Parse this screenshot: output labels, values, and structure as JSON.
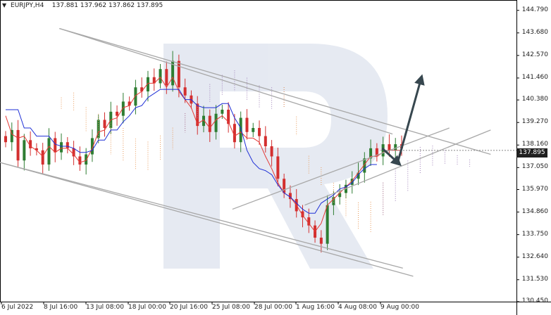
{
  "header": {
    "symbol": "EURJPY,H4",
    "ohlc": "137.881 137.962 137.862 137.895"
  },
  "price_badge": "137.895",
  "y_axis_labels": [
    "144.790",
    "143.680",
    "142.570",
    "141.460",
    "140.380",
    "139.270",
    "138.160",
    "137.050",
    "135.970",
    "134.860",
    "133.750",
    "132.640",
    "131.530",
    "130.450"
  ],
  "x_axis_labels": [
    "6 Jul 2022",
    "8 Jul 16:00",
    "13 Jul 08:00",
    "18 Jul 00:00",
    "20 Jul 16:00",
    "25 Jul 08:00",
    "28 Jul 00:00",
    "1 Aug 16:00",
    "4 Aug 08:00",
    "9 Aug 00:00"
  ],
  "colors": {
    "bull": "#2e7d32",
    "bear": "#d32f2f",
    "tenkan": "#e53935",
    "kijun": "#1e2fd6",
    "cloud_bull": "#9e7fb8",
    "cloud_bear": "#e89a5a",
    "trendline": "#a8a8a8",
    "arrow": "#37474f"
  },
  "chart_data": {
    "type": "candlestick",
    "ylim": [
      130.45,
      145.3
    ],
    "ticks": [
      144.79,
      143.68,
      142.57,
      141.46,
      140.38,
      139.27,
      138.16,
      137.05,
      135.97,
      134.86,
      133.75,
      132.64,
      131.53,
      130.45
    ],
    "close_path": [
      138.3,
      138.9,
      137.4,
      138.4,
      138.0,
      137.9,
      137.2,
      138.5,
      137.8,
      138.3,
      138.0,
      137.6,
      137.2,
      137.7,
      138.5,
      139.4,
      139.0,
      139.8,
      139.6,
      140.3,
      140.1,
      141.0,
      140.8,
      141.5,
      141.2,
      141.9,
      141.1,
      142.3,
      141.0,
      140.6,
      140.2,
      139.1,
      139.6,
      138.8,
      139.7,
      139.9,
      139.2,
      138.3,
      139.5,
      138.8,
      139.0,
      138.6,
      138.1,
      137.6,
      136.5,
      135.8,
      135.5,
      134.9,
      134.6,
      134.2,
      133.6,
      133.3,
      135.2,
      135.6,
      135.8,
      136.2,
      136.5,
      136.8,
      137.5,
      138.0,
      137.6,
      138.2,
      137.9,
      138.2,
      138.0
    ],
    "tenkan": [
      139.6,
      138.7,
      138.5,
      138.6,
      138.1,
      137.9,
      137.6,
      138.1,
      137.8,
      138.0,
      138.0,
      137.7,
      137.3,
      137.4,
      138.0,
      138.8,
      138.9,
      139.4,
      139.5,
      140.0,
      140.1,
      140.6,
      140.8,
      141.2,
      141.2,
      141.5,
      141.0,
      141.5,
      140.8,
      140.4,
      140.0,
      139.2,
      139.4,
      139.0,
      139.4,
      139.6,
      139.3,
      138.6,
      138.8,
      138.5,
      138.5,
      138.3,
      137.6,
      137.0,
      136.3,
      135.8,
      135.6,
      135.2,
      134.7,
      134.3,
      133.9,
      134.3,
      135.2,
      135.5,
      135.8,
      136.1,
      136.4,
      136.8,
      137.2,
      137.6,
      137.6,
      137.8,
      137.9,
      137.9,
      137.9
    ],
    "kijun": [
      139.9,
      139.9,
      139.9,
      139.0,
      139.0,
      138.6,
      138.6,
      138.6,
      138.2,
      138.1,
      138.1,
      138.0,
      137.8,
      137.8,
      137.9,
      138.4,
      138.4,
      138.9,
      138.9,
      139.3,
      139.6,
      140.0,
      140.1,
      140.5,
      140.7,
      140.9,
      140.9,
      140.9,
      140.9,
      140.4,
      140.4,
      140.1,
      140.0,
      140.0,
      140.0,
      140.2,
      140.2,
      139.5,
      139.0,
      137.9,
      137.3,
      137.0,
      136.9,
      136.7,
      136.2,
      135.8,
      135.6,
      135.3,
      135.0,
      134.8,
      134.8,
      135.3,
      135.5,
      135.7,
      136.0,
      136.1,
      136.3,
      136.7,
      137.0,
      137.2,
      137.2
    ],
    "trend_lines": [
      {
        "from": [
          0.115,
          143.9
        ],
        "to": [
          0.95,
          137.7
        ]
      },
      {
        "from": [
          0.115,
          143.9
        ],
        "to": [
          0.76,
          138.7
        ]
      },
      {
        "from": [
          0.0,
          137.3
        ],
        "to": [
          0.8,
          131.7
        ]
      },
      {
        "from": [
          0.0,
          137.3
        ],
        "to": [
          0.78,
          132.1
        ]
      },
      {
        "from": [
          0.45,
          135.0
        ],
        "to": [
          0.87,
          139.0
        ]
      },
      {
        "from": [
          0.59,
          135.2
        ],
        "to": [
          0.95,
          138.9
        ]
      }
    ],
    "forecast_arrows": [
      {
        "from": [
          0.74,
          138.0
        ],
        "to": [
          0.77,
          137.3
        ]
      },
      {
        "from": [
          0.77,
          137.3
        ],
        "to": [
          0.815,
          141.4
        ]
      }
    ]
  }
}
